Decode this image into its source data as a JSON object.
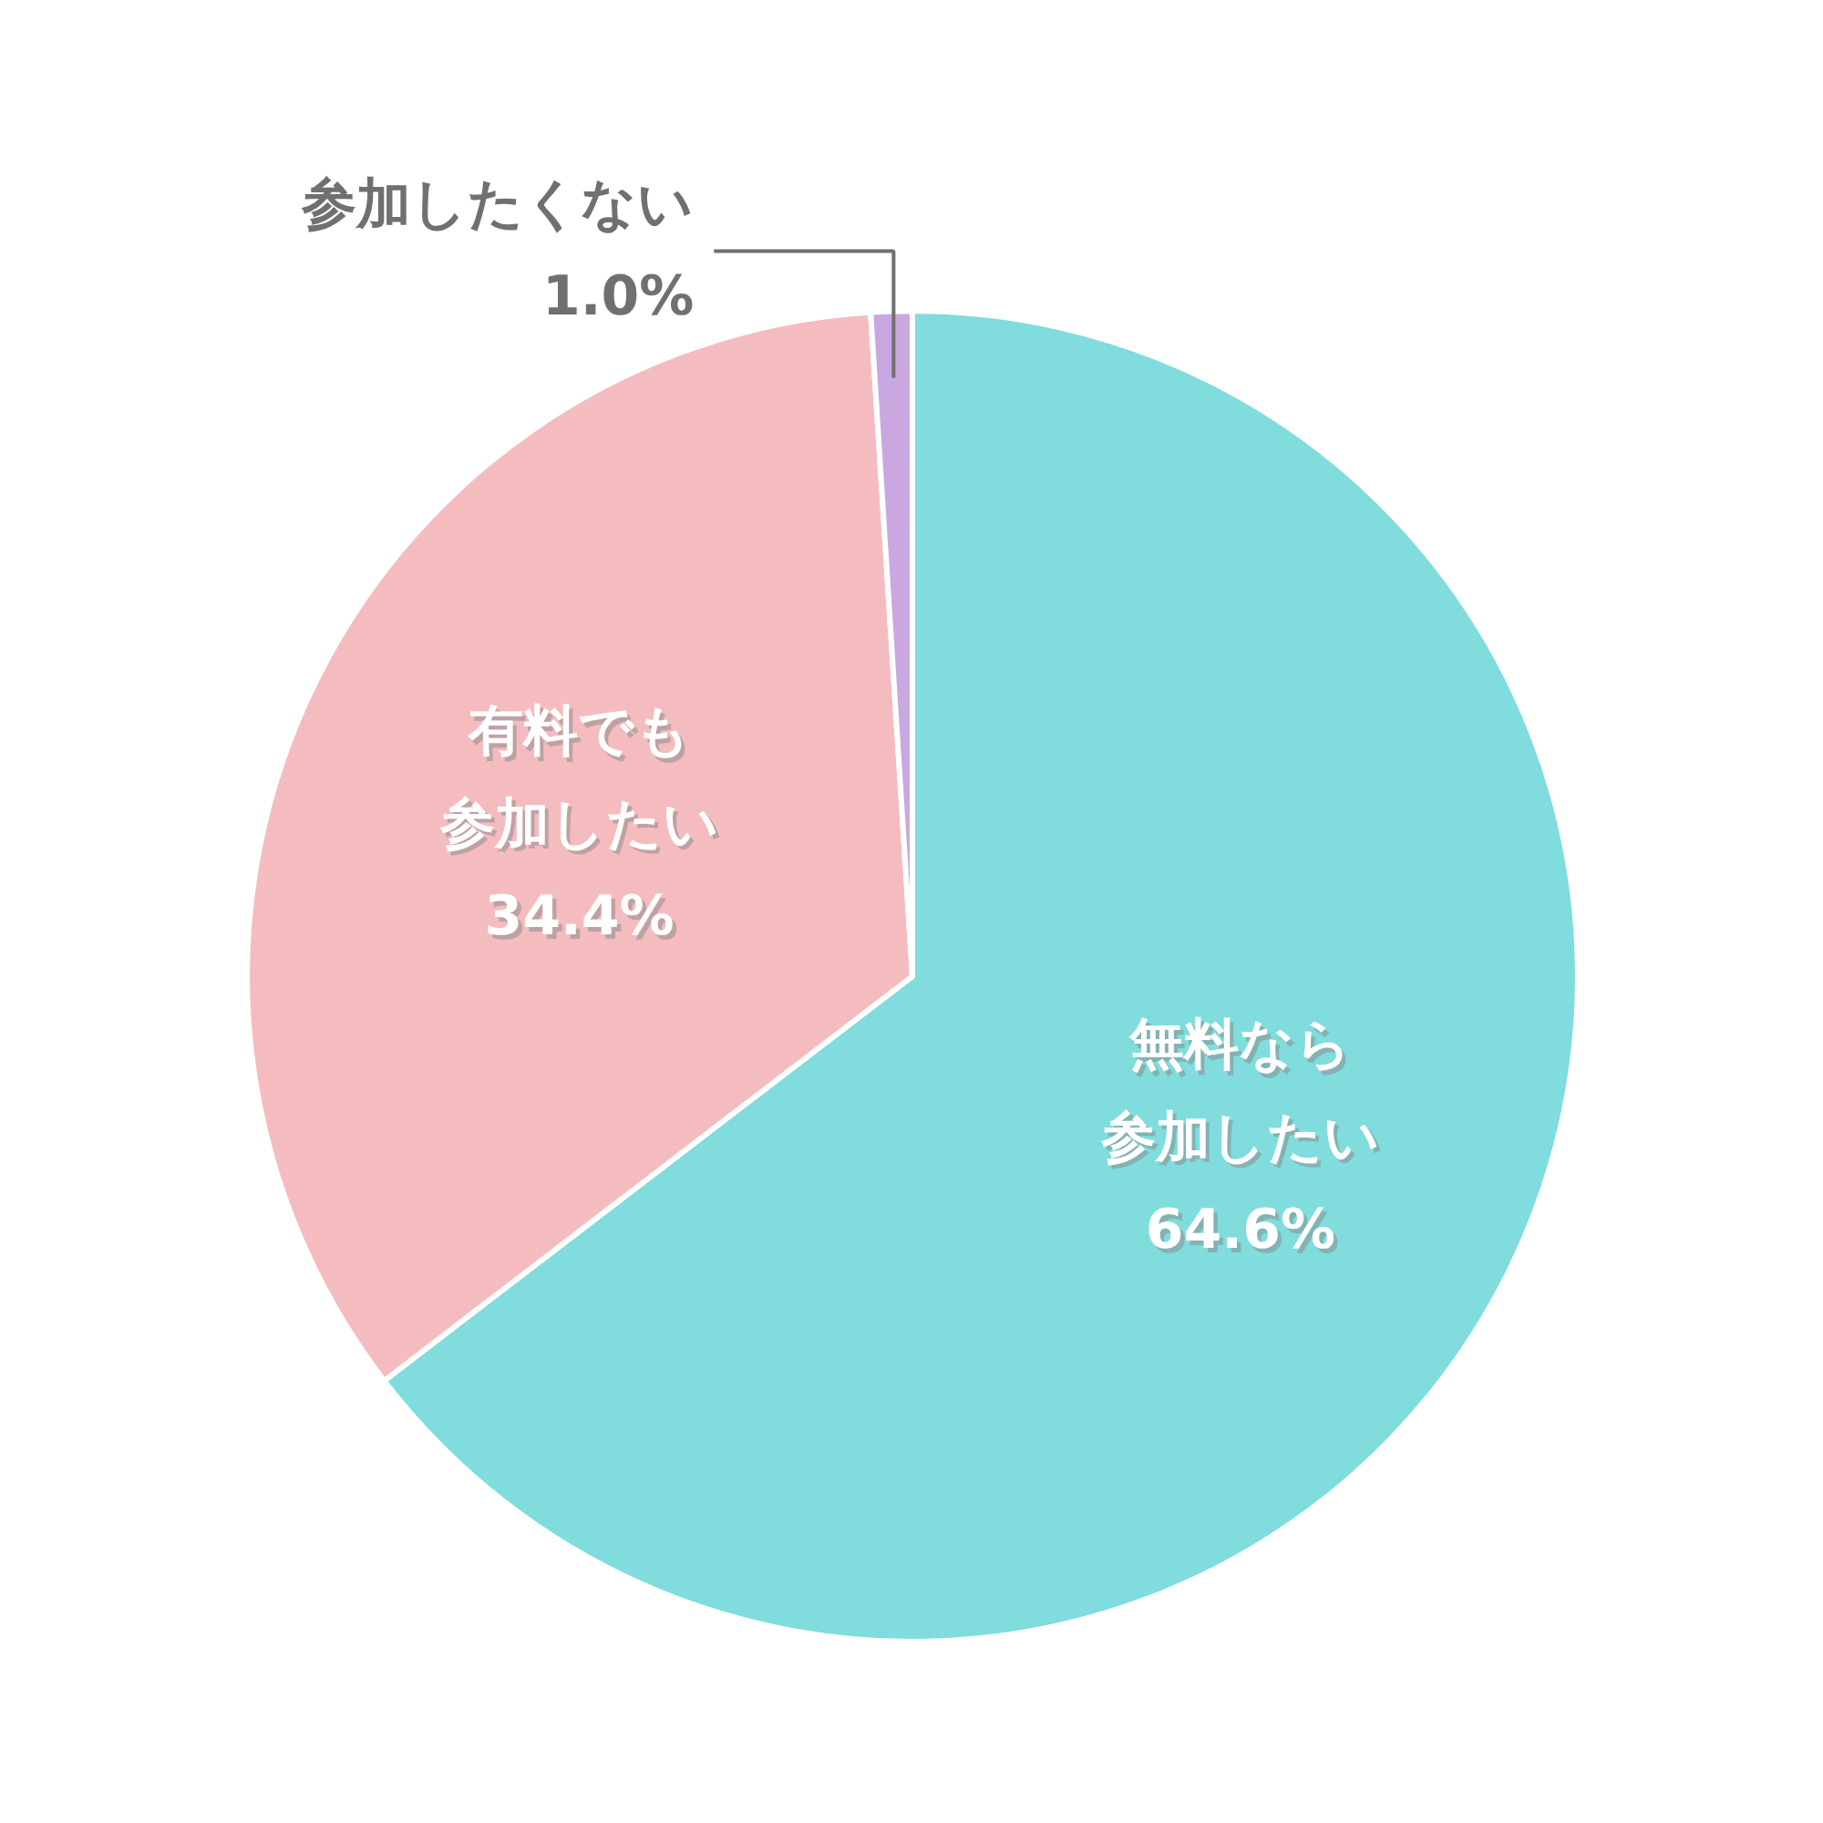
{
  "chart_data": {
    "type": "pie",
    "categories": [
      "無料なら参加したい",
      "有料でも参加したい",
      "参加したくない"
    ],
    "values": [
      64.6,
      34.4,
      1.0
    ],
    "colors": [
      "#80dcdd",
      "#f4bcbf",
      "#c9a8e2"
    ],
    "value_labels": [
      "64.6%",
      "34.4%",
      "1.0%"
    ]
  }
}
